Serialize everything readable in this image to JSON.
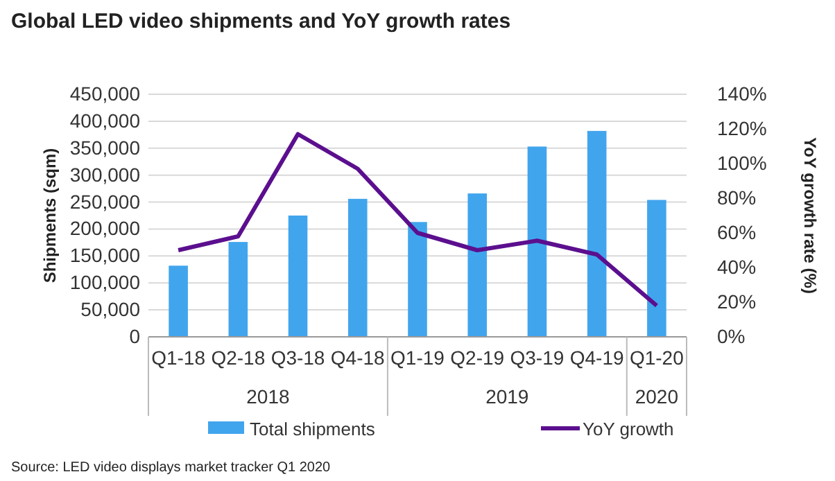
{
  "chart_data": {
    "type": "bar",
    "title": "Global LED video shipments and YoY growth rates",
    "ylabel": "Shipments (sqm)",
    "y2label": "YoY growth rate (%)",
    "categories": [
      "Q1-18",
      "Q2-18",
      "Q3-18",
      "Q4-18",
      "Q1-19",
      "Q2-19",
      "Q3-19",
      "Q4-19",
      "Q1-20"
    ],
    "series": [
      {
        "name": "Total shipments",
        "color": "#41a5ee",
        "values": [
          132000,
          176000,
          225000,
          256000,
          213000,
          266000,
          353000,
          382000,
          254000
        ]
      },
      {
        "name": "YoY growth",
        "type": "line",
        "axis": "y2",
        "color": "#5b0f8e",
        "values": [
          50,
          58,
          117,
          97,
          60,
          50,
          55.5,
          47.5,
          18
        ]
      }
    ],
    "ylim": [
      0,
      450000
    ],
    "yticks": [
      {
        "value": 0,
        "label": "0"
      },
      {
        "value": 50000,
        "label": "50,000"
      },
      {
        "value": 100000,
        "label": "100,000"
      },
      {
        "value": 150000,
        "label": "150,000"
      },
      {
        "value": 200000,
        "label": "200,000"
      },
      {
        "value": 250000,
        "label": "250,000"
      },
      {
        "value": 300000,
        "label": "300,000"
      },
      {
        "value": 350000,
        "label": "350,000"
      },
      {
        "value": 400000,
        "label": "400,000"
      },
      {
        "value": 450000,
        "label": "450,000"
      }
    ],
    "y2lim": [
      0,
      140
    ],
    "y2ticks": [
      {
        "value": 0,
        "label": "0%"
      },
      {
        "value": 20,
        "label": "20%"
      },
      {
        "value": 40,
        "label": "40%"
      },
      {
        "value": 60,
        "label": "60%"
      },
      {
        "value": 80,
        "label": "80%"
      },
      {
        "value": 100,
        "label": "100%"
      },
      {
        "value": 120,
        "label": "120%"
      },
      {
        "value": 140,
        "label": "140%"
      }
    ],
    "grid": "y",
    "legend": "bottom",
    "marker": "none",
    "line_style": "solid",
    "annotations": [
      "2018",
      "2019",
      "2020",
      "Source: LED video displays market tracker Q1 2020"
    ]
  }
}
